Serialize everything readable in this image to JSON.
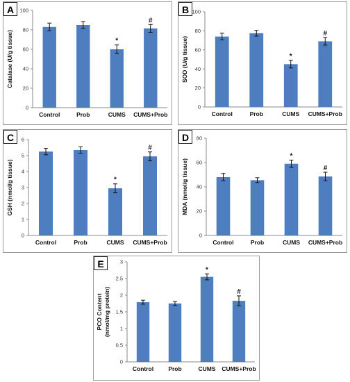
{
  "chart_data": [
    {
      "panel": "A",
      "type": "bar",
      "categories": [
        "Control",
        "Prob",
        "CUMS",
        "CUMS+Prob"
      ],
      "values": [
        83,
        85,
        60,
        81.5
      ],
      "errors": [
        4,
        3.5,
        4.5,
        4
      ],
      "annotations": [
        "",
        "",
        "*",
        "#"
      ],
      "ylabel": "Catalase (U/g tissue)",
      "ylim": [
        0,
        100
      ],
      "yticks": [
        0,
        20,
        40,
        60,
        80,
        100
      ],
      "color": "#4e7ec0",
      "grid": false
    },
    {
      "panel": "B",
      "type": "bar",
      "categories": [
        "Control",
        "Prob",
        "CUMS",
        "CUMS+Prob"
      ],
      "values": [
        74,
        77.5,
        45,
        69
      ],
      "errors": [
        3.5,
        3,
        4,
        4
      ],
      "annotations": [
        "",
        "",
        "*",
        "#"
      ],
      "ylabel": "SOD (U/g tissue)",
      "ylim": [
        0,
        100
      ],
      "yticks": [
        0,
        20,
        40,
        60,
        80,
        100
      ],
      "color": "#4e7ec0",
      "grid": false
    },
    {
      "panel": "C",
      "type": "bar",
      "categories": [
        "Control",
        "Prob",
        "CUMS",
        "CUMS+Prob"
      ],
      "values": [
        5.25,
        5.35,
        2.95,
        4.95
      ],
      "errors": [
        0.2,
        0.2,
        0.28,
        0.28
      ],
      "annotations": [
        "",
        "",
        "*",
        "#"
      ],
      "ylabel": "GSH (nmol/g tissue)",
      "ylim": [
        0,
        6
      ],
      "yticks": [
        0,
        1,
        2,
        3,
        4,
        5,
        6
      ],
      "color": "#4e7ec0",
      "grid": false
    },
    {
      "panel": "D",
      "type": "bar",
      "categories": [
        "Control",
        "Prob",
        "CUMS",
        "CUMS+Prob"
      ],
      "values": [
        48,
        45.5,
        59,
        48.5
      ],
      "errors": [
        3,
        2,
        3,
        3.5
      ],
      "annotations": [
        "",
        "",
        "*",
        "#"
      ],
      "ylabel": "MDA (nmol/g tissue)",
      "ylim": [
        0,
        80
      ],
      "yticks": [
        0,
        20,
        40,
        60,
        80
      ],
      "color": "#4e7ec0",
      "grid": false
    },
    {
      "panel": "E",
      "type": "bar",
      "categories": [
        "Control",
        "Prob",
        "CUMS",
        "CUMS+Prob"
      ],
      "values": [
        1.79,
        1.75,
        2.55,
        1.83
      ],
      "errors": [
        0.06,
        0.06,
        0.09,
        0.15
      ],
      "annotations": [
        "",
        "",
        "*",
        "#"
      ],
      "ylabel": "PCO Content (nmol/mg protein)",
      "ylim": [
        0,
        3
      ],
      "yticks": [
        0,
        0.5,
        1,
        1.5,
        2,
        2.5,
        3
      ],
      "color": "#4e7ec0",
      "grid": false
    }
  ]
}
